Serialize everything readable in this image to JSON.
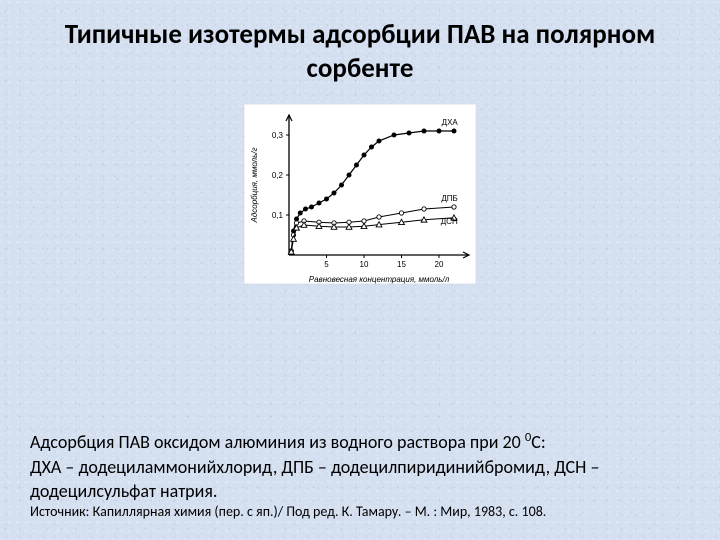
{
  "title": "Типичные изотермы адсорбции ПАВ на полярном сорбенте",
  "title_fontsize": 27,
  "title_color": "#000000",
  "background_color": "#d4dff0",
  "chart": {
    "type": "line",
    "background_color": "#ffffff",
    "axis_color": "#000000",
    "text_color": "#000000",
    "fontsize": 8,
    "xlabel": "Равновесная концентрация, ммоль/л",
    "ylabel": "Адсорбция, ммоль/г",
    "xlim": [
      0,
      24
    ],
    "ylim": [
      0,
      0.35
    ],
    "xticks": [
      5,
      10,
      15,
      20
    ],
    "yticks": [
      0.1,
      0.2,
      0.3
    ],
    "xtick_labels": [
      "5",
      "10",
      "15",
      "20"
    ],
    "ytick_labels": [
      "0,1",
      "0,2",
      "0,3"
    ],
    "series": [
      {
        "name": "ДХА",
        "marker": "filled-circle",
        "marker_size": 3.5,
        "line_width": 1.2,
        "color": "#000000",
        "data": [
          [
            0.3,
            0.01
          ],
          [
            0.6,
            0.06
          ],
          [
            1.0,
            0.09
          ],
          [
            1.5,
            0.105
          ],
          [
            2.2,
            0.115
          ],
          [
            3.0,
            0.12
          ],
          [
            4.0,
            0.13
          ],
          [
            5.0,
            0.14
          ],
          [
            6.0,
            0.155
          ],
          [
            7.0,
            0.175
          ],
          [
            8.0,
            0.2
          ],
          [
            9.0,
            0.225
          ],
          [
            10.0,
            0.25
          ],
          [
            11.0,
            0.27
          ],
          [
            12.0,
            0.285
          ],
          [
            14.0,
            0.3
          ],
          [
            16.0,
            0.305
          ],
          [
            18.0,
            0.31
          ],
          [
            20.0,
            0.31
          ],
          [
            22.0,
            0.31
          ]
        ]
      },
      {
        "name": "ДПБ",
        "marker": "open-circle",
        "marker_size": 3.0,
        "line_width": 1.0,
        "color": "#000000",
        "data": [
          [
            0.3,
            0.01
          ],
          [
            0.6,
            0.05
          ],
          [
            1.0,
            0.08
          ],
          [
            2.0,
            0.085
          ],
          [
            4.0,
            0.082
          ],
          [
            6.0,
            0.08
          ],
          [
            8.0,
            0.082
          ],
          [
            10.0,
            0.085
          ],
          [
            12.0,
            0.095
          ],
          [
            15.0,
            0.105
          ],
          [
            18.0,
            0.115
          ],
          [
            22.0,
            0.12
          ]
        ]
      },
      {
        "name": "ДСН",
        "marker": "open-triangle",
        "marker_size": 3.5,
        "line_width": 1.0,
        "color": "#000000",
        "data": [
          [
            0.3,
            0.008
          ],
          [
            0.6,
            0.04
          ],
          [
            1.0,
            0.068
          ],
          [
            2.0,
            0.075
          ],
          [
            4.0,
            0.072
          ],
          [
            6.0,
            0.07
          ],
          [
            8.0,
            0.07
          ],
          [
            10.0,
            0.072
          ],
          [
            12.0,
            0.076
          ],
          [
            15.0,
            0.082
          ],
          [
            18.0,
            0.088
          ],
          [
            22.0,
            0.093
          ]
        ]
      }
    ],
    "series_labels": [
      {
        "text": "ДХА",
        "x": 22.5,
        "y": 0.325
      },
      {
        "text": "ДПБ",
        "x": 22.5,
        "y": 0.135
      },
      {
        "text": "ДСН",
        "x": 22.5,
        "y": 0.078
      }
    ]
  },
  "caption": {
    "text_pre": "Адсорбция ПАВ оксидом алюминия из водного раствора при 20 ",
    "sup": "0",
    "text_post": "С:",
    "line2": "ДХА – додециламмонийхлорид, ДПБ – додецилпиридинийбромид, ДСН – додецилсульфат натрия.",
    "source": "Источник: Капиллярная химия (пер. с яп.)/ Под ред. К. Тамару. – М. : Мир, 1983, с. 108.",
    "fontsize_main": 18,
    "fontsize_src": 14,
    "color": "#000000"
  }
}
